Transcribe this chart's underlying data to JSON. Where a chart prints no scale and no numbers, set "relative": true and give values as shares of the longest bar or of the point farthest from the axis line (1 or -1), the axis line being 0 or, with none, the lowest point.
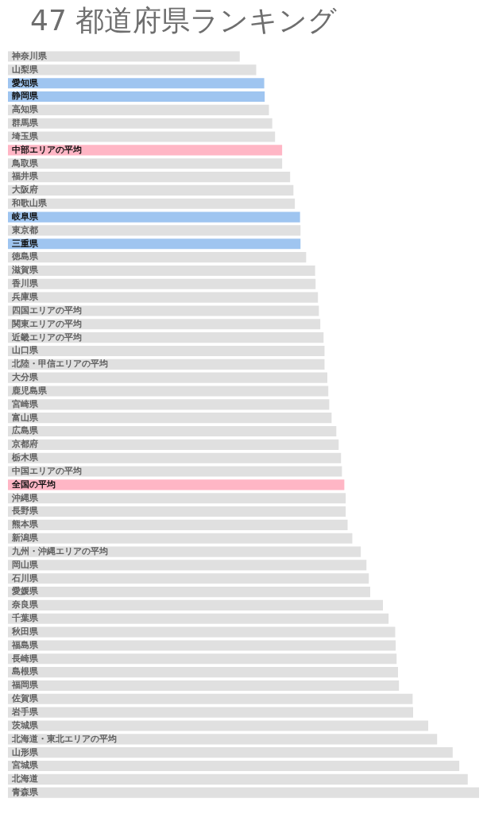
{
  "chart_data": {
    "type": "bar",
    "orientation": "horizontal",
    "relative": true,
    "title": "47 都道府県ランキング",
    "categories": [
      "神奈川県",
      "山梨県",
      "愛知県",
      "静岡県",
      "高知県",
      "群馬県",
      "埼玉県",
      "中部エリアの平均",
      "鳥取県",
      "福井県",
      "大阪府",
      "和歌山県",
      "岐阜県",
      "東京都",
      "三重県",
      "徳島県",
      "滋賀県",
      "香川県",
      "兵庫県",
      "四国エリアの平均",
      "関東エリアの平均",
      "近畿エリアの平均",
      "山口県",
      "北陸・甲信エリアの平均",
      "大分県",
      "鹿児島県",
      "宮崎県",
      "富山県",
      "広島県",
      "京都府",
      "栃木県",
      "中国エリアの平均",
      "全国の平均",
      "沖縄県",
      "長野県",
      "熊本県",
      "新潟県",
      "九州・沖縄エリアの平均",
      "岡山県",
      "石川県",
      "愛媛県",
      "奈良県",
      "千葉県",
      "秋田県",
      "福島県",
      "長崎県",
      "島根県",
      "福岡県",
      "佐賀県",
      "岩手県",
      "茨城県",
      "北海道・東北エリアの平均",
      "山形県",
      "宮城県",
      "北海道",
      "青森県"
    ],
    "values": [
      0.492,
      0.527,
      0.544,
      0.545,
      0.554,
      0.561,
      0.567,
      0.582,
      0.582,
      0.599,
      0.606,
      0.609,
      0.62,
      0.621,
      0.621,
      0.633,
      0.652,
      0.653,
      0.658,
      0.66,
      0.663,
      0.67,
      0.672,
      0.672,
      0.678,
      0.68,
      0.682,
      0.687,
      0.697,
      0.702,
      0.707,
      0.709,
      0.714,
      0.717,
      0.717,
      0.721,
      0.731,
      0.749,
      0.761,
      0.766,
      0.769,
      0.796,
      0.808,
      0.822,
      0.823,
      0.825,
      0.828,
      0.83,
      0.859,
      0.86,
      0.892,
      0.911,
      0.944,
      0.958,
      0.976,
      1
    ],
    "colors": [
      "#e0e0e0",
      "#e0e0e0",
      "#9fc5f0",
      "#9fc5f0",
      "#e0e0e0",
      "#e0e0e0",
      "#e0e0e0",
      "#ffb6c5",
      "#e0e0e0",
      "#e0e0e0",
      "#e0e0e0",
      "#e0e0e0",
      "#9fc5f0",
      "#e0e0e0",
      "#9fc5f0",
      "#e0e0e0",
      "#e0e0e0",
      "#e0e0e0",
      "#e0e0e0",
      "#e0e0e0",
      "#e0e0e0",
      "#e0e0e0",
      "#e0e0e0",
      "#e0e0e0",
      "#e0e0e0",
      "#e0e0e0",
      "#e0e0e0",
      "#e0e0e0",
      "#e0e0e0",
      "#e0e0e0",
      "#e0e0e0",
      "#e0e0e0",
      "#ffb6c5",
      "#e0e0e0",
      "#e0e0e0",
      "#e0e0e0",
      "#e0e0e0",
      "#e0e0e0",
      "#e0e0e0",
      "#e0e0e0",
      "#e0e0e0",
      "#e0e0e0",
      "#e0e0e0",
      "#e0e0e0",
      "#e0e0e0",
      "#e0e0e0",
      "#e0e0e0",
      "#e0e0e0",
      "#e0e0e0",
      "#e0e0e0",
      "#e0e0e0",
      "#e0e0e0",
      "#e0e0e0",
      "#e0e0e0",
      "#e0e0e0",
      "#e0e0e0"
    ]
  }
}
